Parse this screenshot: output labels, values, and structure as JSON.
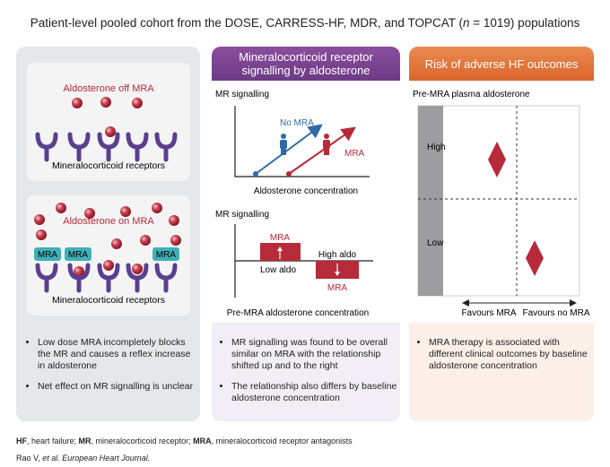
{
  "header": {
    "title": {
      "before": "Patient-level pooled cohort from the DOSE, CARRESS-HF, MDR, and TOPCAT (",
      "italic": "n",
      "after": " = 1019) populations"
    }
  },
  "panels": [
    {
      "boxes": [
        {
          "label": "Aldosterone off MRA",
          "receptors": "Mineralocorticoid receptors"
        },
        {
          "label": "Aldosterone on MRA",
          "drug_tags": [
            "MRA",
            "MRA",
            "MRA"
          ],
          "receptors": "Mineralocorticoid receptors"
        }
      ],
      "bullets": [
        "Low dose MRA incompletely blocks the MR and causes a reflex increase in aldosterone",
        "Net effect on MR signalling is unclear"
      ]
    },
    {
      "header": "Mineralocorticoid receptor signalling by aldosterone",
      "chart1": {
        "y_label": "MR signalling",
        "line1": "No MRA",
        "line2": "MRA",
        "x_label": "Aldosterone concentration"
      },
      "chart2": {
        "y_label": "MR signalling",
        "bar1": "MRA",
        "bar1_label": "Low aldo",
        "bar2_label": "High aldo",
        "bar2": "MRA",
        "x_label": "Pre-MRA aldosterone concentration"
      },
      "bullets": [
        "MR signalling was found to be overall similar on MRA with the relationship shifted up and to the right",
        "The relationship also differs by baseline aldosterone concentration"
      ]
    },
    {
      "header": "Risk of adverse HF outcomes",
      "chart": {
        "y_label": "Pre-MRA plasma aldosterone",
        "high": "High",
        "low": "Low",
        "left": "Favours MRA",
        "right": "Favours no MRA"
      },
      "bullets": [
        "MRA therapy is associated with different clinical outcomes by baseline aldosterone concentration"
      ]
    }
  ],
  "footer": {
    "abbreviations": [
      {
        "term": "HF",
        "text": ", heart failure; "
      },
      {
        "term": "MR",
        "text": ", mineralocorticoid receptor; "
      },
      {
        "term": "MRA",
        "text": ", mineralocorticoid receptor antagonists"
      }
    ],
    "citation": {
      "authors": "Rao V, ",
      "journal": "et al. European Heart Journal."
    }
  }
}
